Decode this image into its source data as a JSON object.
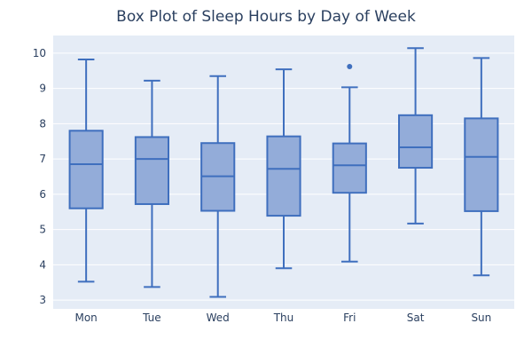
{
  "chart_data": {
    "type": "box",
    "title": "Box Plot of Sleep Hours by Day of Week",
    "xlabel": "",
    "ylabel": "",
    "ylim": [
      2.75,
      10.5
    ],
    "yticks": [
      3,
      4,
      5,
      6,
      7,
      8,
      9,
      10
    ],
    "grid": true,
    "categories": [
      "Mon",
      "Tue",
      "Wed",
      "Thu",
      "Fri",
      "Sat",
      "Sun"
    ],
    "boxes": [
      {
        "min": 3.52,
        "q1": 5.6,
        "median": 6.85,
        "q3": 7.8,
        "max": 9.82,
        "outliers": []
      },
      {
        "min": 3.37,
        "q1": 5.72,
        "median": 7.0,
        "q3": 7.62,
        "max": 9.22,
        "outliers": []
      },
      {
        "min": 3.09,
        "q1": 5.53,
        "median": 6.51,
        "q3": 7.45,
        "max": 9.35,
        "outliers": []
      },
      {
        "min": 3.9,
        "q1": 5.39,
        "median": 6.72,
        "q3": 7.64,
        "max": 9.54,
        "outliers": []
      },
      {
        "min": 4.09,
        "q1": 6.04,
        "median": 6.82,
        "q3": 7.44,
        "max": 9.03,
        "outliers": [
          9.62
        ]
      },
      {
        "min": 5.17,
        "q1": 6.75,
        "median": 7.33,
        "q3": 8.24,
        "max": 10.14,
        "outliers": []
      },
      {
        "min": 3.7,
        "q1": 5.52,
        "median": 7.06,
        "q3": 8.15,
        "max": 9.86,
        "outliers": []
      }
    ],
    "colors": {
      "plot_bg": "#e5ecf6",
      "grid": "#ffffff",
      "box_fill": "#93acd9",
      "box_line": "#3f6fbe",
      "text": "#2a3f5f"
    }
  }
}
